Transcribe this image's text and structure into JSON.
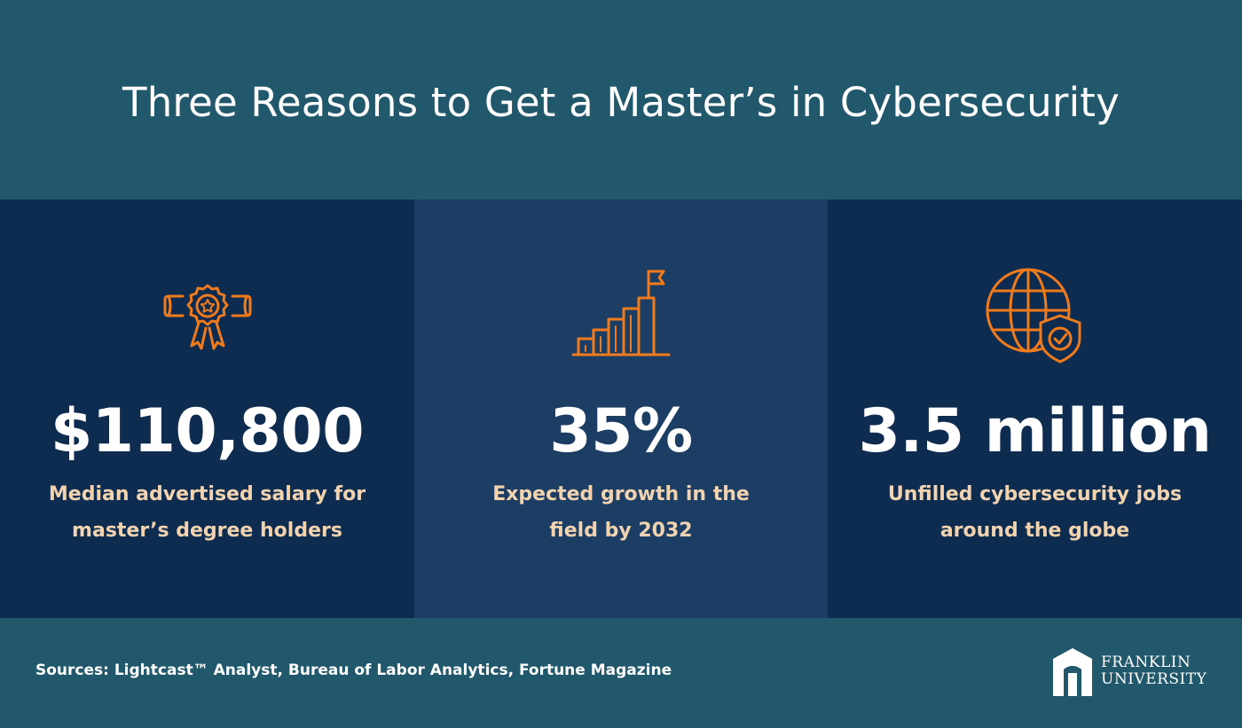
{
  "header": {
    "title": "Three Reasons to Get a Master’s in Cybersecurity"
  },
  "panels": [
    {
      "icon": "award-ribbon-icon",
      "stat": "$110,800",
      "desc_line1": "Median advertised salary for",
      "desc_line2": "master’s degree holders"
    },
    {
      "icon": "growth-chart-flag-icon",
      "stat": "35%",
      "desc_line1": "Expected growth in the",
      "desc_line2": "field by 2032"
    },
    {
      "icon": "globe-shield-icon",
      "stat": "3.5 million",
      "desc_line1": "Unfilled cybersecurity jobs",
      "desc_line2": "around the globe"
    }
  ],
  "footer": {
    "sources": "Sources: Lightcast™ Analyst, Bureau of Labor Analytics, Fortune Magazine",
    "logo_line1": "FRANKLIN",
    "logo_line2": "UNIVERSITY"
  },
  "colors": {
    "background": "#22586b",
    "panel_dark": "#0e2b50",
    "panel_mid": "#1d3e64",
    "accent_orange": "#f07b1d",
    "desc_text": "#f2d3b0"
  }
}
